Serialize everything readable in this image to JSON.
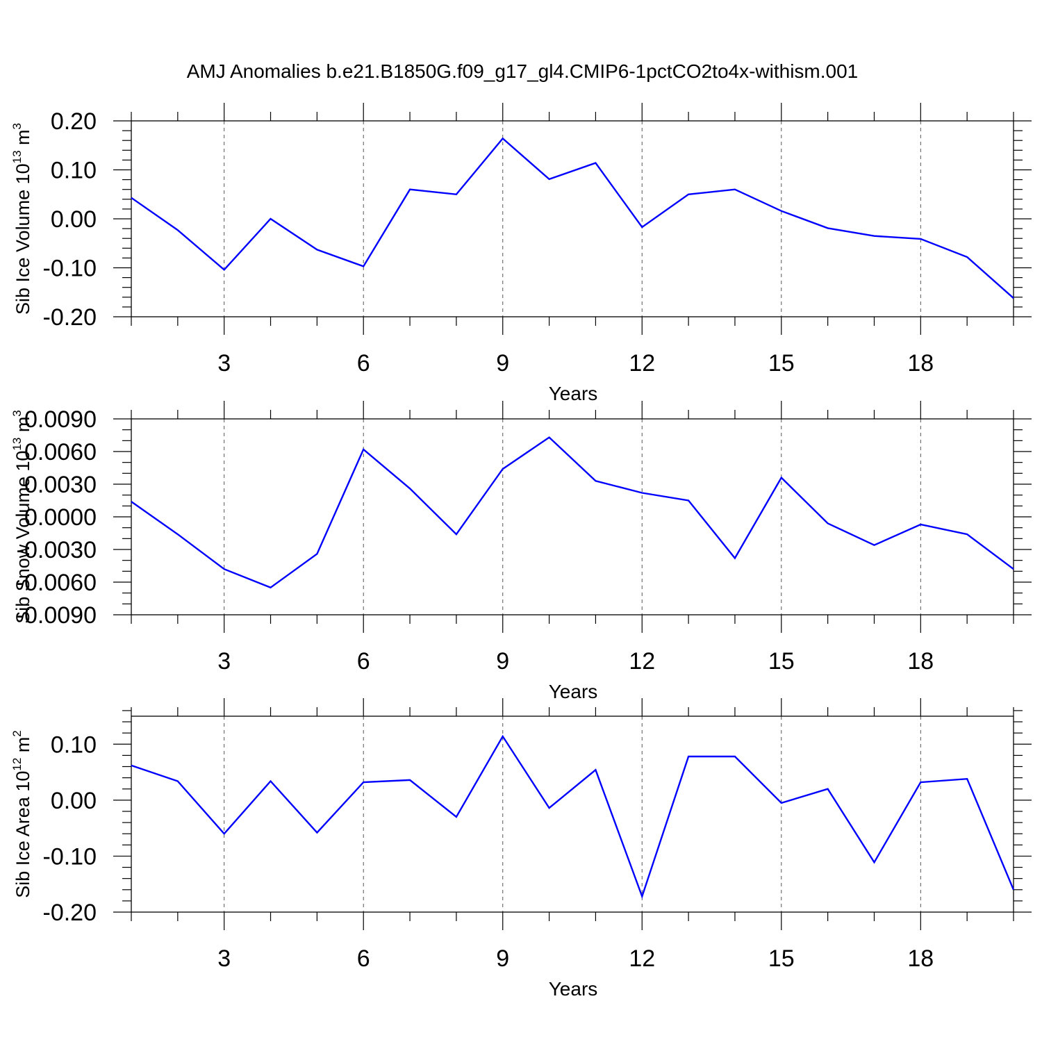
{
  "figure": {
    "title": "AMJ Anomalies b.e21.B1850G.f09_g17_gl4.CMIP6-1pctCO2to4x-withism.001",
    "line_color": "#0000ff",
    "grid_color": "#555555"
  },
  "chart_data": [
    {
      "type": "line",
      "title": "",
      "xlabel": "Years",
      "ylabel": "Sib Ice Volume 10^13 m^3",
      "ylabel_parts": {
        "main": "Sib Ice Volume 10",
        "exp": "13",
        "unit": " m",
        "unit_exp": "3"
      },
      "xlim": [
        1,
        20
      ],
      "ylim": [
        -0.2,
        0.2
      ],
      "x_ticks": [
        3,
        6,
        9,
        12,
        15,
        18
      ],
      "x_tick_labels": [
        "3",
        "6",
        "9",
        "12",
        "15",
        "18"
      ],
      "y_ticks": [
        -0.2,
        -0.1,
        0.0,
        0.1,
        0.2
      ],
      "y_tick_labels": [
        "-0.20",
        "-0.10",
        "0.00",
        "0.10",
        "0.20"
      ],
      "y_minor_step": 0.02,
      "grid": "vertical dashed at major x ticks",
      "x": [
        1,
        2,
        3,
        4,
        5,
        6,
        7,
        8,
        9,
        10,
        11,
        12,
        13,
        14,
        15,
        16,
        17,
        18,
        19,
        20
      ],
      "series": [
        {
          "name": "Sib Ice Volume anomaly",
          "values": [
            0.043,
            -0.023,
            -0.104,
            0.0,
            -0.063,
            -0.097,
            0.06,
            0.05,
            0.164,
            0.081,
            0.114,
            -0.017,
            0.05,
            0.06,
            0.016,
            -0.019,
            -0.035,
            -0.041,
            -0.078,
            -0.162
          ]
        }
      ]
    },
    {
      "type": "line",
      "title": "",
      "xlabel": "Years",
      "ylabel": "Sib Snow Volume 10^13 m^3",
      "ylabel_parts": {
        "main": "Sib Snow Volume 10",
        "exp": "13",
        "unit": " m",
        "unit_exp": "3"
      },
      "xlim": [
        1,
        20
      ],
      "ylim": [
        -0.009,
        0.009
      ],
      "x_ticks": [
        3,
        6,
        9,
        12,
        15,
        18
      ],
      "x_tick_labels": [
        "3",
        "6",
        "9",
        "12",
        "15",
        "18"
      ],
      "y_ticks": [
        -0.009,
        -0.006,
        -0.003,
        0.0,
        0.003,
        0.006,
        0.009
      ],
      "y_tick_labels": [
        "-0.0090",
        "-0.0060",
        "-0.0030",
        "0.0000",
        "0.0030",
        "0.0060",
        "0.0090"
      ],
      "y_minor_step": 0.001,
      "grid": "vertical dashed at major x ticks",
      "x": [
        1,
        2,
        3,
        4,
        5,
        6,
        7,
        8,
        9,
        10,
        11,
        12,
        13,
        14,
        15,
        16,
        17,
        18,
        19,
        20
      ],
      "series": [
        {
          "name": "Sib Snow Volume anomaly",
          "values": [
            0.0014,
            -0.0016,
            -0.0048,
            -0.0065,
            -0.0034,
            0.0062,
            0.0026,
            -0.0016,
            0.0044,
            0.0073,
            0.0033,
            0.0022,
            0.0015,
            -0.0038,
            0.0036,
            -0.0006,
            -0.0026,
            -0.0007,
            -0.0016,
            -0.0048
          ]
        }
      ]
    },
    {
      "type": "line",
      "title": "",
      "xlabel": "Years",
      "ylabel": "Sib Ice Area 10^12 m^2",
      "ylabel_parts": {
        "main": "Sib Ice Area 10",
        "exp": "12",
        "unit": " m",
        "unit_exp": "2"
      },
      "xlim": [
        1,
        20
      ],
      "ylim": [
        -0.2,
        0.15
      ],
      "x_ticks": [
        3,
        6,
        9,
        12,
        15,
        18
      ],
      "x_tick_labels": [
        "3",
        "6",
        "9",
        "12",
        "15",
        "18"
      ],
      "y_ticks": [
        -0.2,
        -0.1,
        0.0,
        0.1
      ],
      "y_tick_labels": [
        "-0.20",
        "-0.10",
        "0.00",
        "0.10"
      ],
      "y_minor_step": 0.02,
      "grid": "vertical dashed at major x ticks",
      "x": [
        1,
        2,
        3,
        4,
        5,
        6,
        7,
        8,
        9,
        10,
        11,
        12,
        13,
        14,
        15,
        16,
        17,
        18,
        19,
        20
      ],
      "series": [
        {
          "name": "Sib Ice Area anomaly",
          "values": [
            0.062,
            0.034,
            -0.06,
            0.034,
            -0.058,
            0.032,
            0.036,
            -0.03,
            0.114,
            -0.014,
            0.054,
            -0.172,
            0.078,
            0.078,
            -0.005,
            0.02,
            -0.111,
            0.032,
            0.038,
            -0.16
          ]
        }
      ]
    }
  ]
}
